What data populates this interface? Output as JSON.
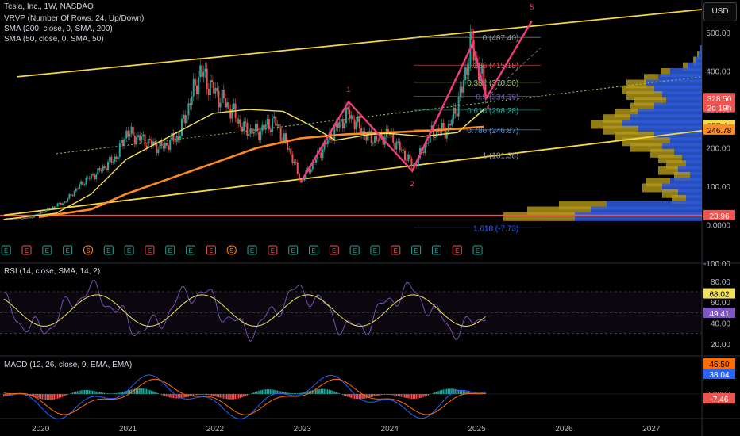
{
  "header": {
    "title": "Tesla, Inc., 1W, NASDAQ",
    "currency": "USD",
    "indicators": [
      "VRVP (Number Of Rows, 24, Up/Down)",
      "SMA (200, close, 0, SMA, 200)",
      "SMA (50, close, 0, SMA, 50)"
    ]
  },
  "colors": {
    "up": "#26a69a",
    "down": "#ef5350",
    "sma50": "#f2e25b",
    "sma200": "#ff8a24",
    "channel": "#f5d845",
    "wave": "#f23a7e",
    "rsi": "#7e57c2",
    "macd": "#2962ff",
    "signal": "#ff6d00",
    "vp_up": "#2e5bd8",
    "vp_down": "#b59a1a"
  },
  "chart_data": [
    {
      "type": "line",
      "title": "Tesla, Inc., 1W, NASDAQ",
      "x_ticks": [
        "2020",
        "2021",
        "2022",
        "2023",
        "2024",
        "2025",
        "2026",
        "2027"
      ],
      "y_ticks": [
        "500.00",
        "400.00",
        "300.00",
        "200.00",
        "100.00",
        "0.0000",
        "-100.00"
      ],
      "ylim": [
        -100,
        560
      ],
      "series": [
        {
          "name": "Price",
          "x": [
            2019.6,
            2019.9,
            2020.1,
            2020.3,
            2020.5,
            2020.7,
            2020.9,
            2021.0,
            2021.2,
            2021.4,
            2021.6,
            2021.85,
            2022.0,
            2022.2,
            2022.35,
            2022.5,
            2022.7,
            2022.9,
            2023.0,
            2023.2,
            2023.4,
            2023.55,
            2023.75,
            2023.9,
            2024.0,
            2024.2,
            2024.3,
            2024.5,
            2024.7,
            2024.85,
            2024.95,
            2025.05,
            2025.15
          ],
          "values": [
            15,
            18,
            40,
            60,
            110,
            140,
            180,
            240,
            220,
            200,
            230,
            400,
            350,
            300,
            250,
            240,
            270,
            180,
            110,
            180,
            250,
            290,
            230,
            220,
            240,
            180,
            150,
            240,
            250,
            350,
            470,
            400,
            330
          ]
        },
        {
          "name": "SMA 50",
          "x": [
            2019.6,
            2020.2,
            2020.6,
            2021.0,
            2021.5,
            2022.0,
            2022.4,
            2022.8,
            2023.1,
            2023.4,
            2023.8,
            2024.0,
            2024.4,
            2024.8,
            2025.1
          ],
          "values": [
            14,
            30,
            80,
            170,
            230,
            290,
            300,
            295,
            260,
            220,
            235,
            238,
            230,
            240,
            300
          ]
        },
        {
          "name": "SMA 200",
          "x": [
            2020.0,
            2020.6,
            2021.0,
            2021.5,
            2022.0,
            2022.5,
            2023.0,
            2023.5,
            2024.0,
            2024.5,
            2025.1
          ],
          "values": [
            20,
            40,
            80,
            120,
            160,
            200,
            225,
            235,
            240,
            245,
            255
          ]
        }
      ],
      "fib_levels": [
        {
          "label": "0 (487.40)",
          "value": 487.4
        },
        {
          "label": "0.236 (415.18)",
          "value": 415.18
        },
        {
          "label": "0.382 (370.50)",
          "value": 370.5
        },
        {
          "label": "0.5 (334.39)",
          "value": 334.39
        },
        {
          "label": "0.618 (298.28)",
          "value": 298.28
        },
        {
          "label": "0.786 (246.87)",
          "value": 246.87
        },
        {
          "label": "1 (181.38)",
          "value": 181.38
        },
        {
          "label": "1.618 (-7.73)",
          "value": -7.73
        }
      ],
      "wave_labels": [
        "1",
        "2",
        "3",
        "4",
        "5"
      ],
      "price_tags": [
        {
          "text": "328.50",
          "bg": "#ef5350",
          "value": 328.5
        },
        {
          "text": "2d 19h",
          "bg": "#ef5350",
          "value": 305
        },
        {
          "text": "257.44",
          "bg": "#f5d845",
          "value": 257.44
        },
        {
          "text": "246.78",
          "bg": "#ff8a24",
          "value": 246.78
        },
        {
          "text": "23.96",
          "bg": "#ef5350",
          "value": 23.96
        }
      ],
      "earnings_markers": [
        "E",
        "E",
        "E",
        "E",
        "S",
        "E",
        "E",
        "E",
        "E",
        "E",
        "E",
        "S",
        "E",
        "E",
        "E",
        "E",
        "E",
        "E",
        "E",
        "E",
        "E",
        "E",
        "E",
        "E"
      ]
    },
    {
      "type": "line",
      "title": "RSI (14, close, SMA, 14, 2)",
      "y_ticks": [
        "80.00",
        "60.00",
        "40.00",
        "20.00"
      ],
      "ylim": [
        10,
        95
      ],
      "values_shown": [
        "68.02",
        "49.41"
      ]
    },
    {
      "type": "bar",
      "title": "MACD (12, 26, close, 9, EMA, EMA)",
      "y_ticks": [
        "0.0000"
      ],
      "values_shown": [
        "45.50",
        "38.04",
        "-7.46"
      ]
    }
  ]
}
